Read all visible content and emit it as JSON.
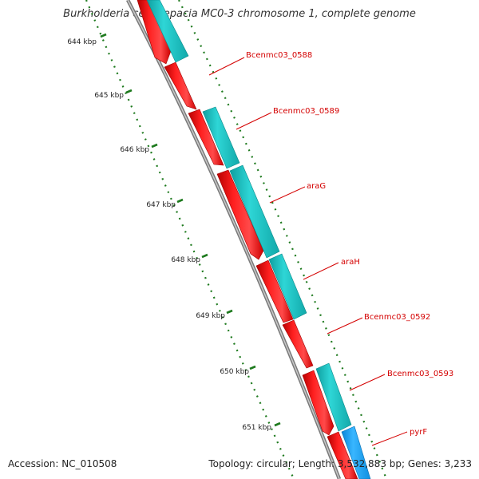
{
  "title": "Burkholderia cenocepacia MC0-3 chromosome 1, complete genome",
  "footer": {
    "accession": "Accession: NC_010508",
    "summary": "Topology: circular; Length: 3,532,883 bp; Genes: 3,233"
  },
  "ticks": [
    "644 kbp",
    "645 kbp",
    "646 kbp",
    "647 kbp",
    "648 kbp",
    "649 kbp",
    "650 kbp",
    "651 kbp"
  ],
  "genes": [
    "Bcenmc03_0588",
    "Bcenmc03_0589",
    "araG",
    "araH",
    "Bcenmc03_0592",
    "Bcenmc03_0593",
    "pyrF"
  ],
  "colors": {
    "cds": "#ff0000",
    "gene": "#19c8c8",
    "gene_blue": "#1aa6ff",
    "backbone": "#888888",
    "tick": "#1e7a1e",
    "label": "#d40000"
  }
}
